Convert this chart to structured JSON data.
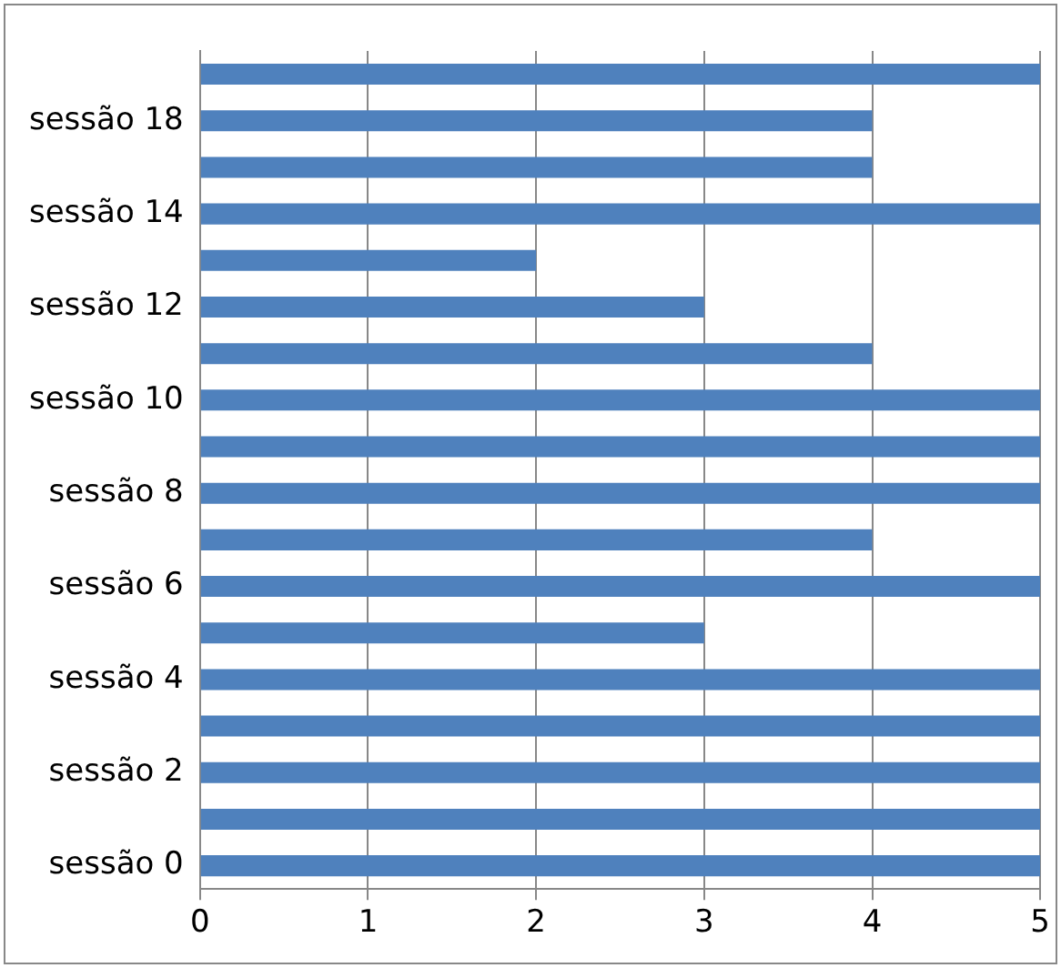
{
  "chart_data": {
    "type": "bar",
    "orientation": "horizontal",
    "categories": [
      null,
      "sessão 18",
      null,
      "sessão 14",
      null,
      "sessão 12",
      null,
      "sessão 10",
      null,
      "sessão 8",
      null,
      "sessão 6",
      null,
      "sessão 4",
      null,
      "sessão 2",
      null,
      "sessão 0"
    ],
    "values": [
      5,
      4,
      4,
      5,
      2,
      3,
      4,
      5,
      5,
      5,
      4,
      5,
      3,
      5,
      5,
      5,
      5,
      5
    ],
    "color": "#4f81bd",
    "xlim": [
      0,
      5
    ],
    "xticks": [
      0,
      1,
      2,
      3,
      4,
      5
    ],
    "grid": "x",
    "legend": false
  }
}
